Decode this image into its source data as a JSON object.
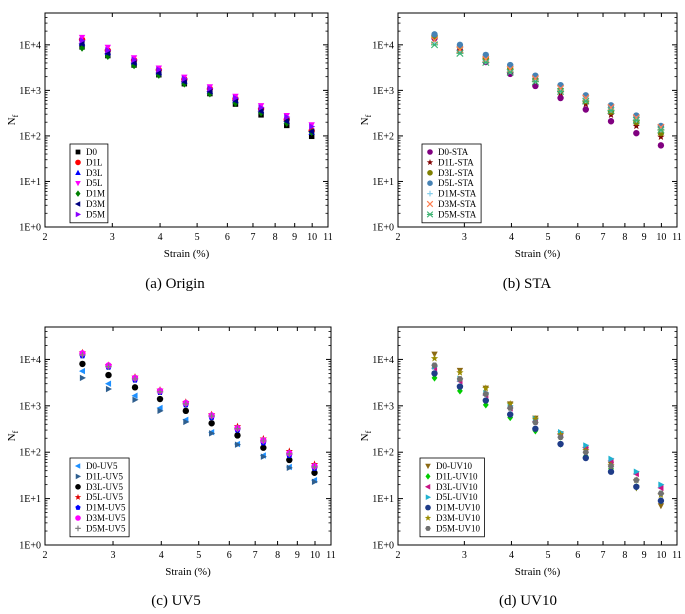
{
  "chart_data": [
    {
      "type": "scatter",
      "caption": "(a) Origin",
      "xlabel": "Strain (%)",
      "ylabel_main": "N",
      "ylabel_sub": "f",
      "xscale": "log",
      "yscale": "log",
      "xlim": [
        2,
        11
      ],
      "ylim": [
        1,
        50000
      ],
      "xticks": [
        2,
        3,
        4,
        5,
        6,
        7,
        8,
        9,
        10,
        11
      ],
      "yticks": [
        {
          "v": 1,
          "label": "1E+0"
        },
        {
          "v": 10,
          "label": "1E+1"
        },
        {
          "v": 100,
          "label": "1E+2"
        },
        {
          "v": 1000,
          "label": "1E+3"
        },
        {
          "v": 10000,
          "label": "1E+4"
        }
      ],
      "legend_position": "bottom-left",
      "x": [
        2.5,
        2.92,
        3.42,
        3.97,
        4.63,
        5.4,
        6.3,
        7.35,
        8.58,
        9.97
      ],
      "series": [
        {
          "name": "D0",
          "marker": "square",
          "color": "#000000",
          "values": [
            9000,
            5800,
            3600,
            2200,
            1400,
            850,
            500,
            290,
            170,
            98
          ]
        },
        {
          "name": "D1L",
          "marker": "circle",
          "color": "#ff0000",
          "values": [
            13000,
            7500,
            4600,
            2800,
            1750,
            1080,
            650,
            390,
            230,
            130
          ]
        },
        {
          "name": "D3L",
          "marker": "triangle-up",
          "color": "#0000ff",
          "values": [
            11000,
            6800,
            4200,
            2500,
            1600,
            960,
            600,
            360,
            210,
            120
          ]
        },
        {
          "name": "D5L",
          "marker": "triangle-down",
          "color": "#ff00ff",
          "values": [
            14500,
            8800,
            5200,
            3100,
            1950,
            1200,
            740,
            460,
            280,
            175
          ]
        },
        {
          "name": "D1M",
          "marker": "diamond",
          "color": "#008000",
          "values": [
            8500,
            5600,
            3500,
            2150,
            1380,
            840,
            520,
            320,
            190,
            120
          ]
        },
        {
          "name": "D3M",
          "marker": "triangle-left",
          "color": "#000080",
          "values": [
            10500,
            6500,
            4000,
            2400,
            1550,
            950,
            590,
            350,
            210,
            125
          ]
        },
        {
          "name": "D5M",
          "marker": "triangle-right",
          "color": "#8b00ff",
          "values": [
            12500,
            7600,
            4700,
            2850,
            1800,
            1100,
            680,
            420,
            260,
            160
          ]
        }
      ]
    },
    {
      "type": "scatter",
      "caption": "(b) STA",
      "xlabel": "Strain (%)",
      "ylabel_main": "N",
      "ylabel_sub": "f",
      "xscale": "log",
      "yscale": "log",
      "xlim": [
        2,
        11
      ],
      "ylim": [
        1,
        50000
      ],
      "xticks": [
        2,
        3,
        4,
        5,
        6,
        7,
        8,
        9,
        10,
        11
      ],
      "yticks": [
        {
          "v": 1,
          "label": "1E+0"
        },
        {
          "v": 10,
          "label": "1E+1"
        },
        {
          "v": 100,
          "label": "1E+2"
        },
        {
          "v": 1000,
          "label": "1E+3"
        },
        {
          "v": 10000,
          "label": "1E+4"
        }
      ],
      "legend_position": "bottom-left",
      "x": [
        2.5,
        2.92,
        3.42,
        3.97,
        4.63,
        5.4,
        6.3,
        7.35,
        8.58,
        9.97
      ],
      "series": [
        {
          "name": "D0-STA",
          "marker": "circle",
          "color": "#800080",
          "values": [
            14000,
            7500,
            4200,
            2300,
            1250,
            680,
            380,
            210,
            115,
            62
          ]
        },
        {
          "name": "D1L-STA",
          "marker": "star",
          "color": "#800000",
          "values": [
            15000,
            8500,
            4800,
            2700,
            1550,
            880,
            500,
            290,
            165,
            95
          ]
        },
        {
          "name": "D3L-STA",
          "marker": "circle",
          "color": "#808000",
          "values": [
            15500,
            9000,
            5200,
            3000,
            1750,
            1000,
            580,
            340,
            200,
            115
          ]
        },
        {
          "name": "D5L-STA",
          "marker": "circle",
          "color": "#4682b4",
          "values": [
            17000,
            10000,
            6000,
            3600,
            2100,
            1300,
            780,
            470,
            280,
            165
          ]
        },
        {
          "name": "D1M-STA",
          "marker": "plus",
          "color": "#87ceeb",
          "values": [
            11000,
            7000,
            4400,
            2700,
            1650,
            1000,
            620,
            380,
            230,
            140
          ]
        },
        {
          "name": "D3M-STA",
          "marker": "cross",
          "color": "#ff7f50",
          "values": [
            12500,
            7800,
            4800,
            2900,
            1800,
            1100,
            680,
            420,
            250,
            155
          ]
        },
        {
          "name": "D5M-STA",
          "marker": "asterisk",
          "color": "#3cb371",
          "values": [
            10000,
            6500,
            4100,
            2500,
            1550,
            950,
            580,
            360,
            220,
            135
          ]
        }
      ]
    },
    {
      "type": "scatter",
      "caption": "(c) UV5",
      "xlabel": "Strain (%)",
      "ylabel_main": "N",
      "ylabel_sub": "f",
      "xscale": "log",
      "yscale": "log",
      "xlim": [
        2,
        11
      ],
      "ylim": [
        1,
        50000
      ],
      "xticks": [
        2,
        3,
        4,
        5,
        6,
        7,
        8,
        9,
        10,
        11
      ],
      "yticks": [
        {
          "v": 1,
          "label": "1E+0"
        },
        {
          "v": 10,
          "label": "1E+1"
        },
        {
          "v": 100,
          "label": "1E+2"
        },
        {
          "v": 1000,
          "label": "1E+3"
        },
        {
          "v": 10000,
          "label": "1E+4"
        }
      ],
      "legend_position": "bottom-left",
      "x": [
        2.5,
        2.92,
        3.42,
        3.97,
        4.63,
        5.4,
        6.3,
        7.35,
        8.58,
        9.97
      ],
      "series": [
        {
          "name": "D0-UV5",
          "marker": "triangle-left",
          "color": "#1e90ff",
          "values": [
            5600,
            3000,
            1650,
            900,
            500,
            270,
            150,
            85,
            48,
            25
          ]
        },
        {
          "name": "D1L-UV5",
          "marker": "triangle-right",
          "color": "#2f5f8f",
          "values": [
            4000,
            2300,
            1350,
            780,
            450,
            255,
            145,
            80,
            46,
            23
          ]
        },
        {
          "name": "D3L-UV5",
          "marker": "circle",
          "color": "#000000",
          "values": [
            8000,
            4600,
            2500,
            1400,
            780,
            420,
            230,
            125,
            68,
            36
          ]
        },
        {
          "name": "D5L-UV5",
          "marker": "star",
          "color": "#e00000",
          "values": [
            14000,
            7500,
            4200,
            2200,
            1200,
            650,
            360,
            195,
            105,
            55
          ]
        },
        {
          "name": "D1M-UV5",
          "marker": "pentagon",
          "color": "#0000ff",
          "values": [
            12000,
            6800,
            3600,
            1950,
            1050,
            560,
            300,
            160,
            85,
            45
          ]
        },
        {
          "name": "D3M-UV5",
          "marker": "circle",
          "color": "#ff00ff",
          "values": [
            13500,
            7400,
            4000,
            2100,
            1150,
            620,
            330,
            180,
            95,
            50
          ]
        },
        {
          "name": "D5M-UV5",
          "marker": "plus",
          "color": "#808080",
          "values": [
            12500,
            7000,
            3800,
            2000,
            1100,
            600,
            320,
            175,
            92,
            48
          ]
        }
      ]
    },
    {
      "type": "scatter",
      "caption": "(d) UV10",
      "xlabel": "Strain (%)",
      "ylabel_main": "N",
      "ylabel_sub": "f",
      "xscale": "log",
      "yscale": "log",
      "xlim": [
        2,
        11
      ],
      "ylim": [
        1,
        50000
      ],
      "xticks": [
        2,
        3,
        4,
        5,
        6,
        7,
        8,
        9,
        10,
        11
      ],
      "yticks": [
        {
          "v": 1,
          "label": "1E+0"
        },
        {
          "v": 10,
          "label": "1E+1"
        },
        {
          "v": 100,
          "label": "1E+2"
        },
        {
          "v": 1000,
          "label": "1E+3"
        },
        {
          "v": 10000,
          "label": "1E+4"
        }
      ],
      "legend_position": "bottom-left",
      "x": [
        2.5,
        2.92,
        3.42,
        3.97,
        4.63,
        5.4,
        6.3,
        7.35,
        8.58,
        9.97
      ],
      "series": [
        {
          "name": "D0-UV10",
          "marker": "triangle-down",
          "color": "#8b6914",
          "values": [
            13000,
            5800,
            2400,
            1100,
            540,
            250,
            115,
            55,
            17,
            7
          ]
        },
        {
          "name": "D1L-UV10",
          "marker": "diamond",
          "color": "#00cc00",
          "values": [
            4000,
            2100,
            1050,
            560,
            290,
            150,
            82,
            44,
            18,
            9
          ]
        },
        {
          "name": "D3L-UV10",
          "marker": "triangle-left",
          "color": "#c71585",
          "values": [
            6500,
            3400,
            1700,
            880,
            460,
            240,
            125,
            65,
            34,
            17
          ]
        },
        {
          "name": "D5L-UV10",
          "marker": "triangle-right",
          "color": "#20b2d0",
          "values": [
            7000,
            3800,
            1900,
            1000,
            520,
            270,
            140,
            72,
            38,
            20
          ]
        },
        {
          "name": "D1M-UV10",
          "marker": "circle",
          "color": "#1f3c88",
          "values": [
            5000,
            2600,
            1300,
            650,
            320,
            150,
            75,
            38,
            18,
            9
          ]
        },
        {
          "name": "D3M-UV10",
          "marker": "star",
          "color": "#9a8c00",
          "values": [
            10500,
            5200,
            2400,
            1100,
            520,
            240,
            110,
            52,
            25,
            12
          ]
        },
        {
          "name": "D5M-UV10",
          "marker": "hexagon",
          "color": "#707070",
          "values": [
            7500,
            3800,
            1800,
            900,
            440,
            210,
            100,
            50,
            25,
            13
          ]
        }
      ]
    }
  ]
}
